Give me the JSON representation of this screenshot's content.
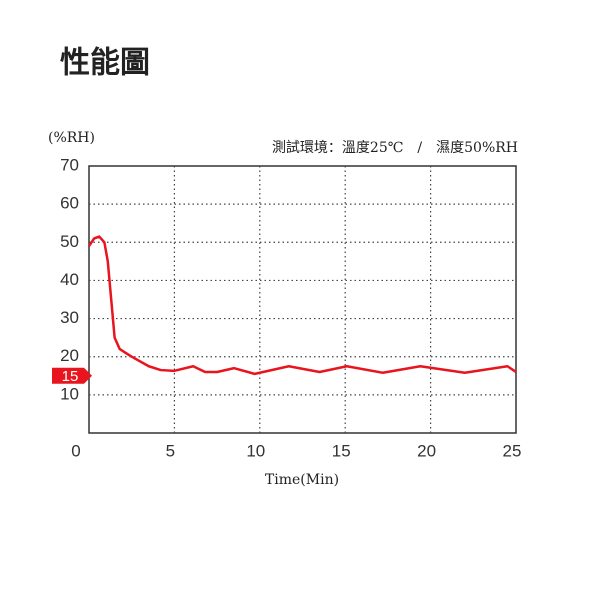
{
  "chart_data": {
    "type": "line",
    "title": "性能圖",
    "y_label": "(%RH)",
    "annotation": "測試環境：溫度25℃　/　濕度50%RH",
    "x_label": "Time(Min)",
    "x": [
      0,
      0.3,
      0.6,
      0.9,
      1.1,
      1.3,
      1.5,
      1.8,
      2.5,
      3.5,
      4.2,
      5,
      6.1,
      6.8,
      7.5,
      8.5,
      9.7,
      11.7,
      13.5,
      15.1,
      17.2,
      19.4,
      22,
      24.5,
      25
    ],
    "series": [
      {
        "color": "#e8141e",
        "values": [
          49,
          51,
          51.5,
          50,
          45,
          35,
          25,
          22,
          20,
          17.5,
          16.5,
          16.3,
          17.5,
          16,
          16,
          17,
          15.5,
          17.5,
          16,
          17.5,
          15.8,
          17.5,
          15.8,
          17.5,
          16
        ]
      }
    ],
    "reference_value": 15,
    "reference_color": "#e8141e",
    "xlim": [
      0,
      25
    ],
    "xticks": [
      0,
      5,
      10,
      15,
      20,
      25
    ],
    "ylim": [
      0,
      70
    ],
    "yticks": [
      10,
      20,
      30,
      40,
      50,
      60,
      70
    ],
    "grid": true
  }
}
